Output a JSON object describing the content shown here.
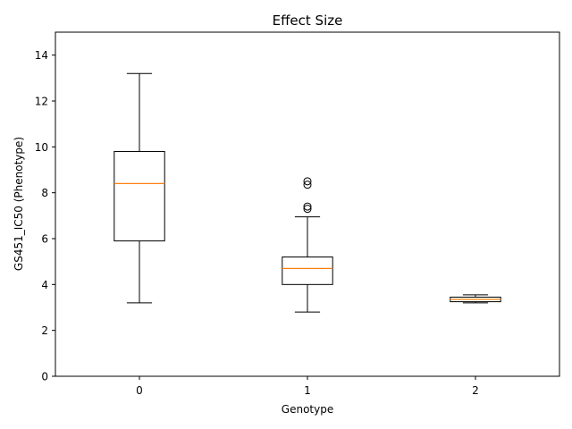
{
  "chart_data": {
    "type": "box",
    "title": "Effect Size",
    "xlabel": "Genotype",
    "ylabel": "GS451_IC50 (Phenotype)",
    "ylim": [
      0,
      15
    ],
    "yticks": [
      0,
      2,
      4,
      6,
      8,
      10,
      12,
      14
    ],
    "xlim": [
      -0.5,
      2.5
    ],
    "categories": [
      "0",
      "1",
      "2"
    ],
    "boxes": [
      {
        "category": "0",
        "whisker_low": 3.2,
        "q1": 5.9,
        "median": 8.4,
        "q3": 9.8,
        "whisker_high": 13.2,
        "outliers": []
      },
      {
        "category": "1",
        "whisker_low": 2.8,
        "q1": 4.0,
        "median": 4.7,
        "q3": 5.2,
        "whisker_high": 6.95,
        "outliers": [
          7.3,
          7.4,
          8.35,
          8.5
        ]
      },
      {
        "category": "2",
        "whisker_low": 3.2,
        "q1": 3.25,
        "median": 3.35,
        "q3": 3.45,
        "whisker_high": 3.55,
        "outliers": []
      }
    ],
    "grid": false,
    "colors": {
      "box": "#000000",
      "median": "#ff7f0e",
      "outlier": "#000000"
    }
  }
}
